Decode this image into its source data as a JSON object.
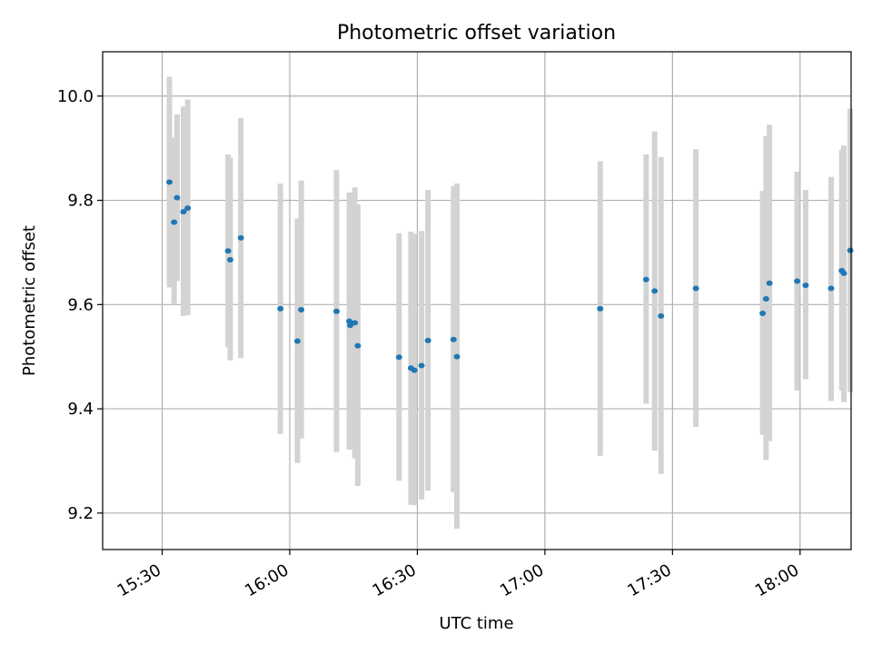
{
  "chart_data": {
    "type": "scatter",
    "title": "Photometric offset variation",
    "xlabel": "UTC time",
    "ylabel": "Photometric offset",
    "x_axis": {
      "type": "time",
      "range": [
        "15:16",
        "18:12"
      ],
      "ticks": [
        "15:30",
        "16:00",
        "16:30",
        "17:00",
        "17:30",
        "18:00"
      ]
    },
    "y_axis": {
      "range": [
        9.13,
        10.085
      ],
      "ticks": [
        "9.2",
        "9.4",
        "9.6",
        "9.8",
        "10.0"
      ]
    },
    "grid": true,
    "series": [
      {
        "colors": {
          "point": "#1f77b4",
          "errorbar": "#d3d3d3"
        },
        "points": [
          {
            "time": "15:31.7",
            "y": 9.835,
            "lo": 9.633,
            "hi": 10.037
          },
          {
            "time": "15:32.8",
            "y": 9.758,
            "lo": 9.6,
            "hi": 9.92
          },
          {
            "time": "15:33.5",
            "y": 9.805,
            "lo": 9.645,
            "hi": 9.965
          },
          {
            "time": "15:35.0",
            "y": 9.778,
            "lo": 9.578,
            "hi": 9.98
          },
          {
            "time": "15:36.0",
            "y": 9.785,
            "lo": 9.58,
            "hi": 9.993
          },
          {
            "time": "15:45.5",
            "y": 9.703,
            "lo": 9.518,
            "hi": 9.888
          },
          {
            "time": "15:46.0",
            "y": 9.686,
            "lo": 9.493,
            "hi": 9.882
          },
          {
            "time": "15:48.5",
            "y": 9.728,
            "lo": 9.497,
            "hi": 9.958
          },
          {
            "time": "15:57.8",
            "y": 9.592,
            "lo": 9.352,
            "hi": 9.832
          },
          {
            "time": "16:01.8",
            "y": 9.53,
            "lo": 9.296,
            "hi": 9.765
          },
          {
            "time": "16:02.7",
            "y": 9.59,
            "lo": 9.343,
            "hi": 9.838
          },
          {
            "time": "16:11.0",
            "y": 9.587,
            "lo": 9.317,
            "hi": 9.858
          },
          {
            "time": "16:14.0",
            "y": 9.568,
            "lo": 9.322,
            "hi": 9.815
          },
          {
            "time": "16:14.2",
            "y": 9.56,
            "lo": 9.322,
            "hi": 9.798
          },
          {
            "time": "16:15.3",
            "y": 9.565,
            "lo": 9.305,
            "hi": 9.825
          },
          {
            "time": "16:16.0",
            "y": 9.521,
            "lo": 9.252,
            "hi": 9.792
          },
          {
            "time": "16:25.7",
            "y": 9.499,
            "lo": 9.262,
            "hi": 9.737
          },
          {
            "time": "16:28.5",
            "y": 9.478,
            "lo": 9.216,
            "hi": 9.74
          },
          {
            "time": "16:29.3",
            "y": 9.474,
            "lo": 9.215,
            "hi": 9.736
          },
          {
            "time": "16:31.0",
            "y": 9.483,
            "lo": 9.226,
            "hi": 9.741
          },
          {
            "time": "16:32.5",
            "y": 9.531,
            "lo": 9.243,
            "hi": 9.82
          },
          {
            "time": "16:38.5",
            "y": 9.533,
            "lo": 9.24,
            "hi": 9.827
          },
          {
            "time": "16:39.3",
            "y": 9.5,
            "lo": 9.17,
            "hi": 9.832
          },
          {
            "time": "17:13.0",
            "y": 9.592,
            "lo": 9.31,
            "hi": 9.875
          },
          {
            "time": "17:23.8",
            "y": 9.648,
            "lo": 9.41,
            "hi": 9.888
          },
          {
            "time": "17:25.8",
            "y": 9.626,
            "lo": 9.32,
            "hi": 9.932
          },
          {
            "time": "17:27.3",
            "y": 9.578,
            "lo": 9.275,
            "hi": 9.883
          },
          {
            "time": "17:35.5",
            "y": 9.631,
            "lo": 9.365,
            "hi": 9.898
          },
          {
            "time": "17:51.2",
            "y": 9.583,
            "lo": 9.35,
            "hi": 9.818
          },
          {
            "time": "17:52.0",
            "y": 9.611,
            "lo": 9.302,
            "hi": 9.923
          },
          {
            "time": "17:52.8",
            "y": 9.641,
            "lo": 9.338,
            "hi": 9.945
          },
          {
            "time": "17:59.3",
            "y": 9.645,
            "lo": 9.435,
            "hi": 9.855
          },
          {
            "time": "18:01.3",
            "y": 9.637,
            "lo": 9.457,
            "hi": 9.82
          },
          {
            "time": "18:07.3",
            "y": 9.631,
            "lo": 9.415,
            "hi": 9.845
          },
          {
            "time": "18:09.8",
            "y": 9.665,
            "lo": 9.435,
            "hi": 9.897
          },
          {
            "time": "18:10.3",
            "y": 9.66,
            "lo": 9.413,
            "hi": 9.905
          },
          {
            "time": "18:11.8",
            "y": 9.704,
            "lo": 9.432,
            "hi": 9.976
          }
        ]
      }
    ]
  }
}
